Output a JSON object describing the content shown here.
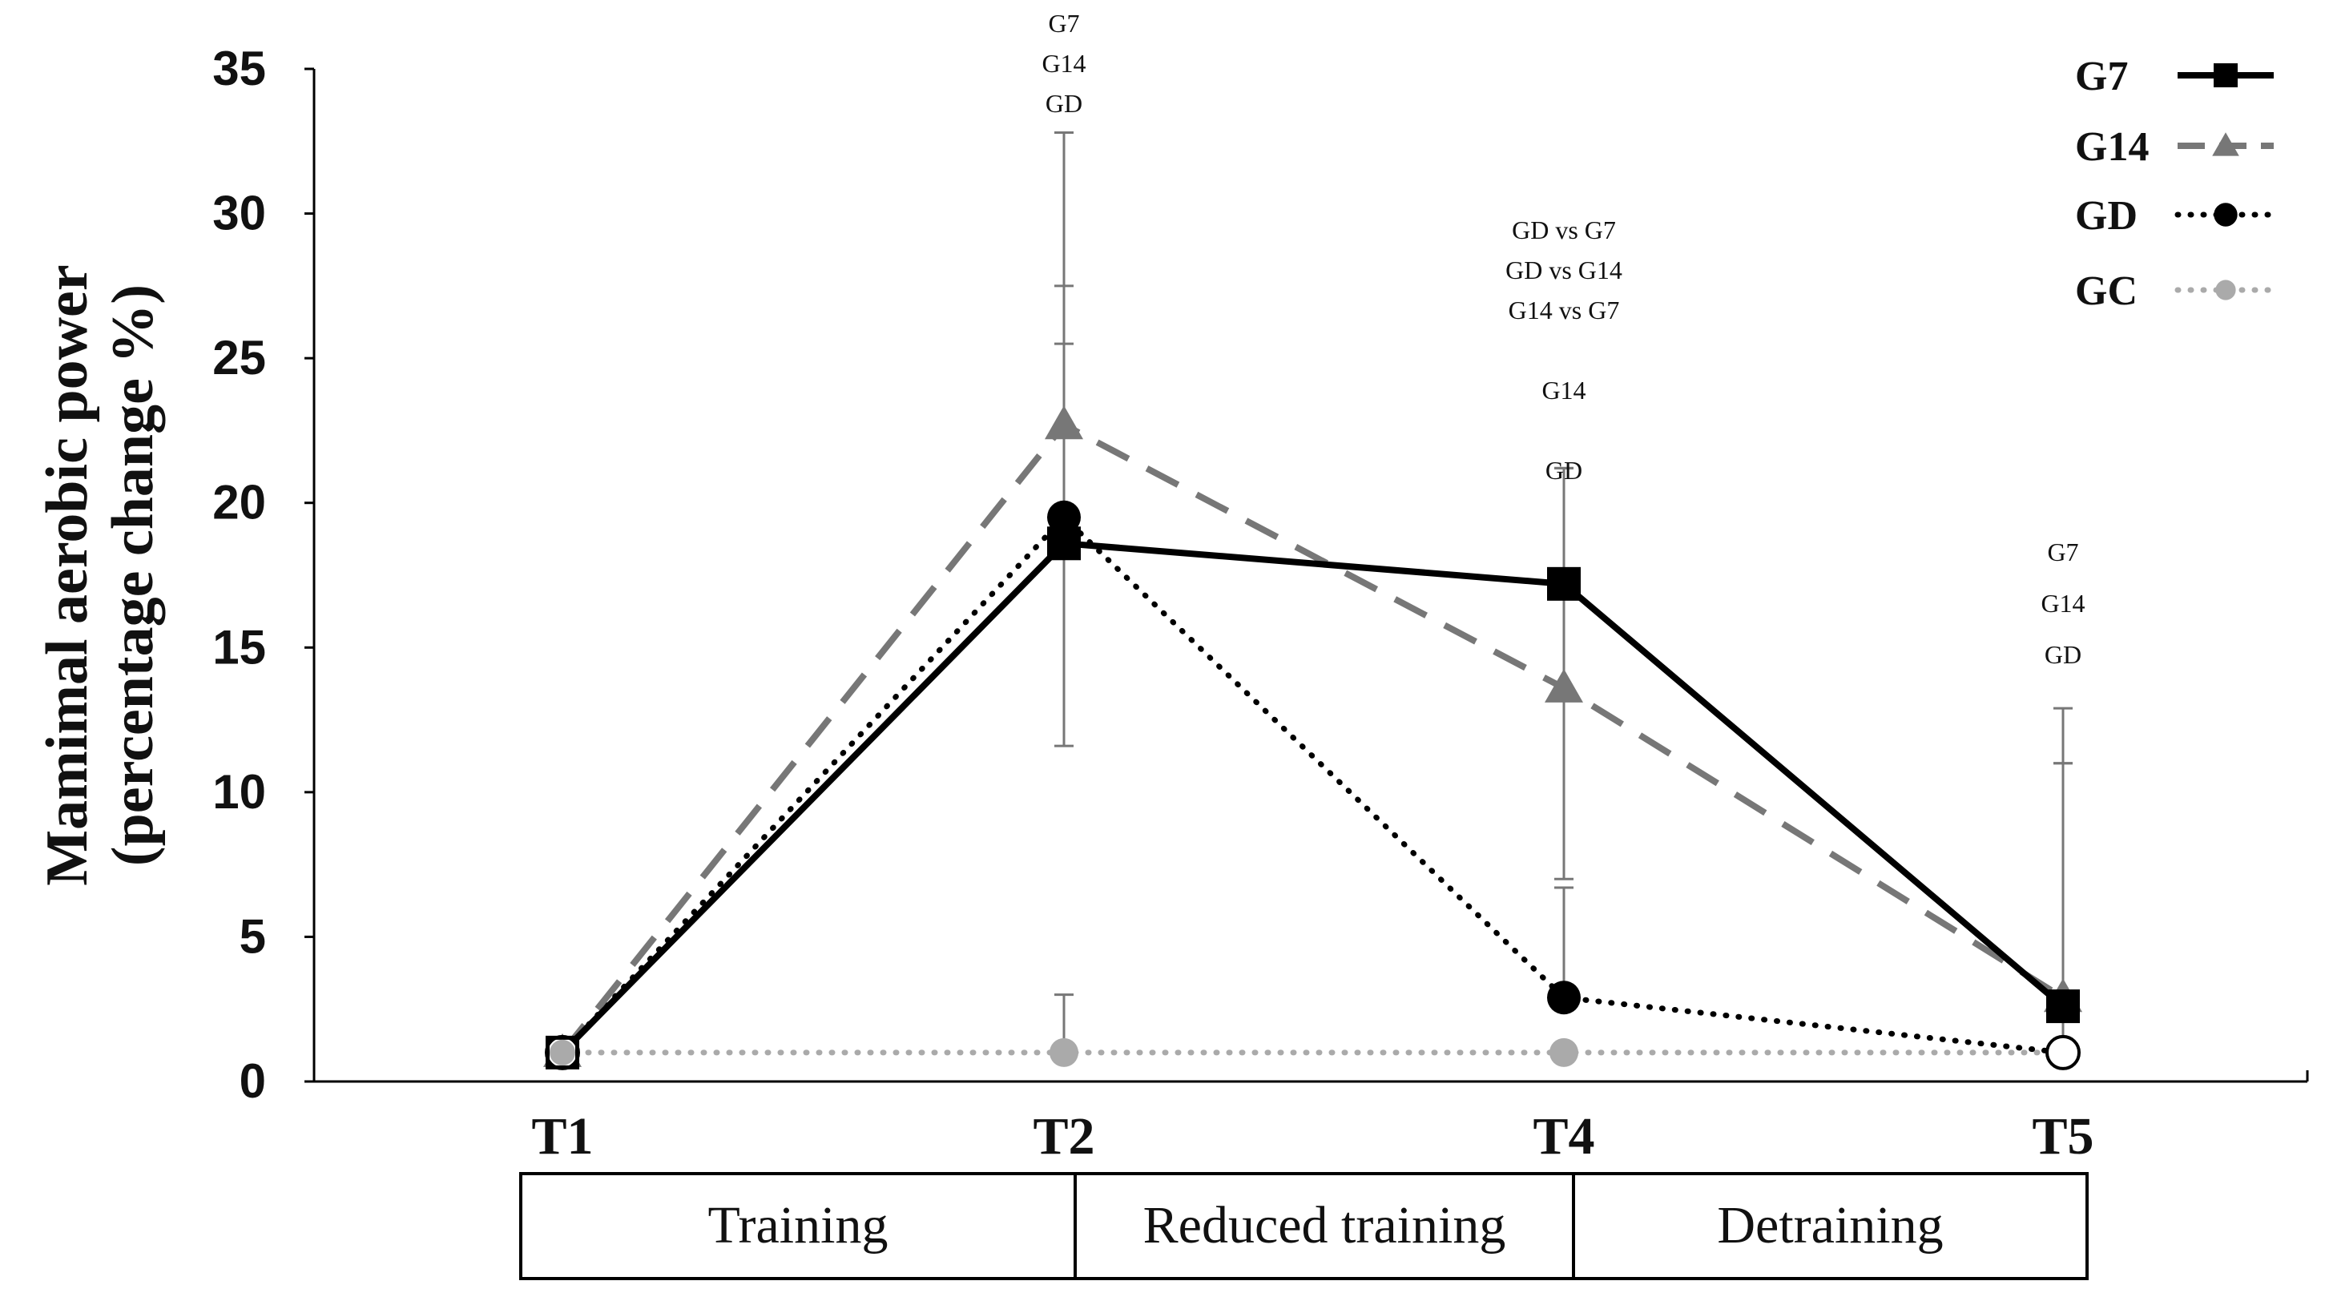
{
  "chart_data": {
    "type": "line",
    "title": "",
    "xlabel": "",
    "ylabel_lines": [
      "Mamimal aerobic power",
      "(percentage change %)"
    ],
    "ylim": [
      0,
      35
    ],
    "yticks": [
      0,
      5,
      10,
      15,
      20,
      25,
      30,
      35
    ],
    "grid": false,
    "legend_position": "top-right",
    "categories": [
      "T1",
      "T2",
      "T4",
      "T5"
    ],
    "series": [
      {
        "name": "G7",
        "style": "solid",
        "marker": "square",
        "color": "#000000",
        "values": [
          1,
          18.6,
          17.2,
          2.6
        ],
        "error_plus": [
          0,
          6.9,
          4.0,
          10.3
        ]
      },
      {
        "name": "G14",
        "style": "dashed",
        "marker": "triangle",
        "color": "#777777",
        "values": [
          1,
          22.7,
          13.6,
          2.9
        ],
        "error_plus": [
          0,
          10.1,
          7.6,
          8.1
        ]
      },
      {
        "name": "GD",
        "style": "dotted",
        "marker": "circle",
        "color": "#000000",
        "values": [
          1,
          19.5,
          2.9,
          1.0
        ],
        "error_plus": [
          0,
          8.0,
          3.8,
          10.0
        ]
      },
      {
        "name": "GC",
        "style": "dotted",
        "marker": "circle",
        "color": "#aaaaaa",
        "values": [
          1,
          1,
          1,
          1
        ],
        "error_plus": [
          0,
          2.0,
          0,
          0
        ]
      }
    ],
    "error_lower": [
      null,
      11.6,
      7.0,
      null
    ],
    "annotations": [
      {
        "category": "T2",
        "lines": [
          "G7",
          "G14",
          "GD"
        ]
      },
      {
        "category": "T4",
        "lines": [
          "GD vs G7",
          "GD vs G14",
          "G14 vs G7",
          "",
          "G14",
          "",
          "GD"
        ]
      },
      {
        "category": "T5",
        "lines": [
          "G7",
          "",
          "G14",
          "",
          "GD"
        ]
      }
    ],
    "phases": [
      {
        "label": "Training",
        "from": "T1",
        "to": "T2"
      },
      {
        "label": "Reduced training",
        "from": "T2",
        "to": "T4"
      },
      {
        "label": "Detraining",
        "from": "T4",
        "to": "T5"
      }
    ]
  }
}
